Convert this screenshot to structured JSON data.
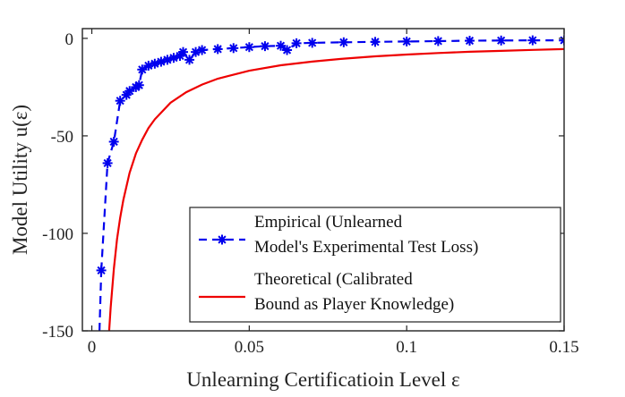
{
  "chart_data": {
    "type": "line",
    "xlabel": "Unlearning Certificatioin Level ε",
    "ylabel": "Model Utility u(ε)",
    "xlim": [
      -0.003,
      0.15
    ],
    "ylim": [
      -150,
      5
    ],
    "xticks": [
      0,
      0.05,
      0.1,
      0.15
    ],
    "xtick_labels": [
      "0",
      "0.05",
      "0.1",
      "0.15"
    ],
    "yticks": [
      0,
      -50,
      -100,
      -150
    ],
    "ytick_labels": [
      "0",
      "-50",
      "-100",
      "-150"
    ],
    "grid": false,
    "legend_position": "bottom-right",
    "series": [
      {
        "name_lines": [
          "Empirical (Unlearned",
          "Model's Experimental Test Loss)"
        ],
        "color": "#0000ee",
        "style": "dashed",
        "marker": "asterisk",
        "x": [
          0.003,
          0.005,
          0.007,
          0.009,
          0.011,
          0.012,
          0.014,
          0.015,
          0.016,
          0.018,
          0.02,
          0.022,
          0.024,
          0.026,
          0.028,
          0.029,
          0.031,
          0.033,
          0.035,
          0.04,
          0.045,
          0.05,
          0.055,
          0.06,
          0.062,
          0.065,
          0.07,
          0.08,
          0.09,
          0.1,
          0.11,
          0.12,
          0.13,
          0.14,
          0.15
        ],
        "y": [
          -119,
          -64,
          -53,
          -32,
          -29,
          -27,
          -25,
          -24,
          -16,
          -14,
          -13,
          -12,
          -11,
          -10,
          -9,
          -7,
          -11,
          -7,
          -6,
          -5.5,
          -5,
          -4.5,
          -4,
          -3.8,
          -6,
          -2.5,
          -2.3,
          -2,
          -1.8,
          -1.6,
          -1.4,
          -1.2,
          -1.1,
          -1,
          -1
        ]
      },
      {
        "name_lines": [
          "Theoretical (Calibrated",
          "Bound as Player Knowledge)"
        ],
        "color": "#ee0000",
        "style": "solid",
        "marker": "none",
        "x": [
          0.0055,
          0.006,
          0.007,
          0.008,
          0.009,
          0.01,
          0.012,
          0.014,
          0.016,
          0.018,
          0.02,
          0.025,
          0.03,
          0.035,
          0.04,
          0.05,
          0.06,
          0.07,
          0.08,
          0.09,
          0.1,
          0.11,
          0.12,
          0.13,
          0.14,
          0.15
        ],
        "y": [
          -150,
          -138,
          -118,
          -103,
          -92,
          -83,
          -69,
          -59,
          -52,
          -46,
          -41.5,
          -33,
          -27.6,
          -23.7,
          -20.7,
          -16.6,
          -13.8,
          -11.9,
          -10.4,
          -9.2,
          -8.3,
          -7.5,
          -6.9,
          -6.4,
          -5.9,
          -5.5
        ]
      }
    ]
  }
}
